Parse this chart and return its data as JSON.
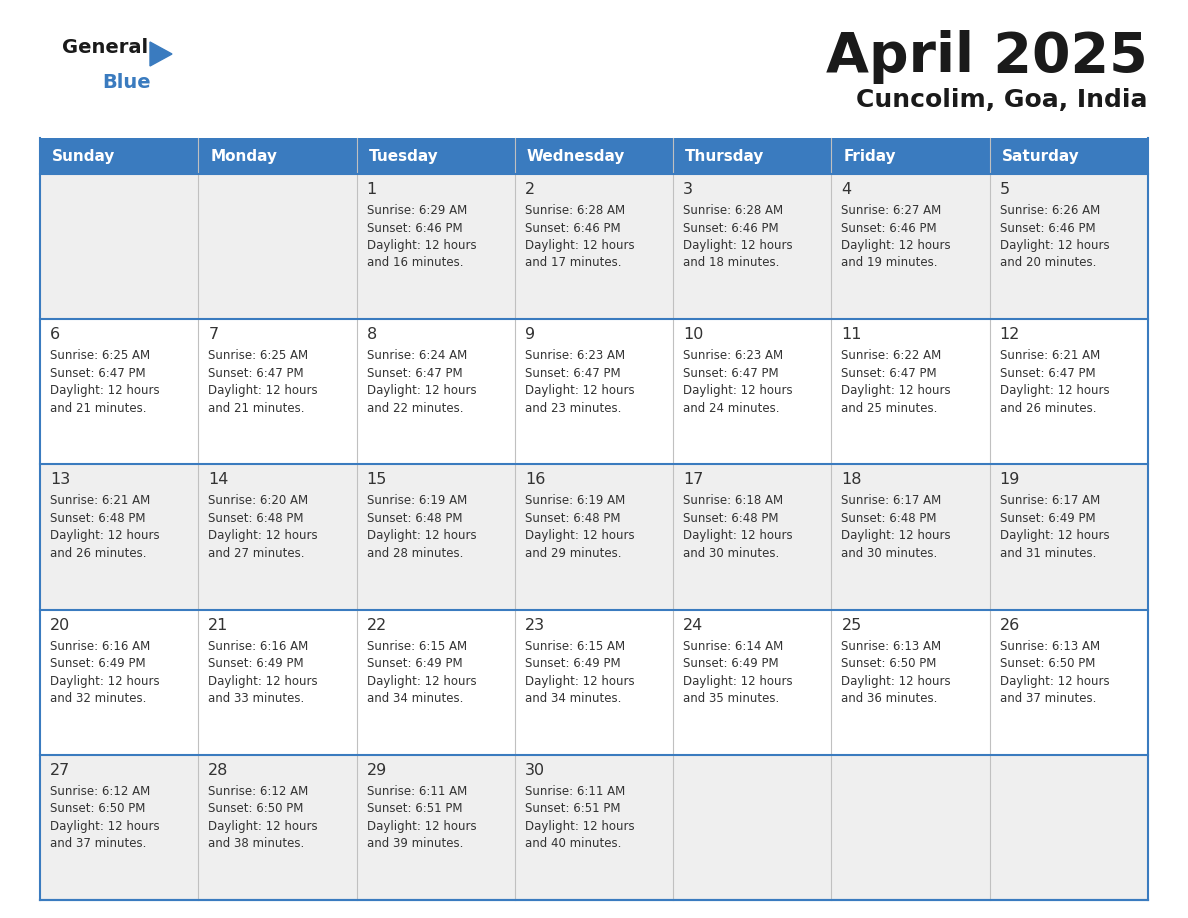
{
  "title": "April 2025",
  "subtitle": "Cuncolim, Goa, India",
  "header_color": "#3a7bbf",
  "header_text_color": "#ffffff",
  "row_odd_bg": "#efefef",
  "row_even_bg": "#ffffff",
  "border_color": "#3a7bbf",
  "text_color": "#333333",
  "days_of_week": [
    "Sunday",
    "Monday",
    "Tuesday",
    "Wednesday",
    "Thursday",
    "Friday",
    "Saturday"
  ],
  "weeks": [
    [
      {
        "day": "",
        "sunrise": "",
        "sunset": "",
        "daylight_hours": 0,
        "daylight_minutes": 0
      },
      {
        "day": "",
        "sunrise": "",
        "sunset": "",
        "daylight_hours": 0,
        "daylight_minutes": 0
      },
      {
        "day": "1",
        "sunrise": "6:29 AM",
        "sunset": "6:46 PM",
        "daylight_hours": 12,
        "daylight_minutes": 16
      },
      {
        "day": "2",
        "sunrise": "6:28 AM",
        "sunset": "6:46 PM",
        "daylight_hours": 12,
        "daylight_minutes": 17
      },
      {
        "day": "3",
        "sunrise": "6:28 AM",
        "sunset": "6:46 PM",
        "daylight_hours": 12,
        "daylight_minutes": 18
      },
      {
        "day": "4",
        "sunrise": "6:27 AM",
        "sunset": "6:46 PM",
        "daylight_hours": 12,
        "daylight_minutes": 19
      },
      {
        "day": "5",
        "sunrise": "6:26 AM",
        "sunset": "6:46 PM",
        "daylight_hours": 12,
        "daylight_minutes": 20
      }
    ],
    [
      {
        "day": "6",
        "sunrise": "6:25 AM",
        "sunset": "6:47 PM",
        "daylight_hours": 12,
        "daylight_minutes": 21
      },
      {
        "day": "7",
        "sunrise": "6:25 AM",
        "sunset": "6:47 PM",
        "daylight_hours": 12,
        "daylight_minutes": 21
      },
      {
        "day": "8",
        "sunrise": "6:24 AM",
        "sunset": "6:47 PM",
        "daylight_hours": 12,
        "daylight_minutes": 22
      },
      {
        "day": "9",
        "sunrise": "6:23 AM",
        "sunset": "6:47 PM",
        "daylight_hours": 12,
        "daylight_minutes": 23
      },
      {
        "day": "10",
        "sunrise": "6:23 AM",
        "sunset": "6:47 PM",
        "daylight_hours": 12,
        "daylight_minutes": 24
      },
      {
        "day": "11",
        "sunrise": "6:22 AM",
        "sunset": "6:47 PM",
        "daylight_hours": 12,
        "daylight_minutes": 25
      },
      {
        "day": "12",
        "sunrise": "6:21 AM",
        "sunset": "6:47 PM",
        "daylight_hours": 12,
        "daylight_minutes": 26
      }
    ],
    [
      {
        "day": "13",
        "sunrise": "6:21 AM",
        "sunset": "6:48 PM",
        "daylight_hours": 12,
        "daylight_minutes": 26
      },
      {
        "day": "14",
        "sunrise": "6:20 AM",
        "sunset": "6:48 PM",
        "daylight_hours": 12,
        "daylight_minutes": 27
      },
      {
        "day": "15",
        "sunrise": "6:19 AM",
        "sunset": "6:48 PM",
        "daylight_hours": 12,
        "daylight_minutes": 28
      },
      {
        "day": "16",
        "sunrise": "6:19 AM",
        "sunset": "6:48 PM",
        "daylight_hours": 12,
        "daylight_minutes": 29
      },
      {
        "day": "17",
        "sunrise": "6:18 AM",
        "sunset": "6:48 PM",
        "daylight_hours": 12,
        "daylight_minutes": 30
      },
      {
        "day": "18",
        "sunrise": "6:17 AM",
        "sunset": "6:48 PM",
        "daylight_hours": 12,
        "daylight_minutes": 30
      },
      {
        "day": "19",
        "sunrise": "6:17 AM",
        "sunset": "6:49 PM",
        "daylight_hours": 12,
        "daylight_minutes": 31
      }
    ],
    [
      {
        "day": "20",
        "sunrise": "6:16 AM",
        "sunset": "6:49 PM",
        "daylight_hours": 12,
        "daylight_minutes": 32
      },
      {
        "day": "21",
        "sunrise": "6:16 AM",
        "sunset": "6:49 PM",
        "daylight_hours": 12,
        "daylight_minutes": 33
      },
      {
        "day": "22",
        "sunrise": "6:15 AM",
        "sunset": "6:49 PM",
        "daylight_hours": 12,
        "daylight_minutes": 34
      },
      {
        "day": "23",
        "sunrise": "6:15 AM",
        "sunset": "6:49 PM",
        "daylight_hours": 12,
        "daylight_minutes": 34
      },
      {
        "day": "24",
        "sunrise": "6:14 AM",
        "sunset": "6:49 PM",
        "daylight_hours": 12,
        "daylight_minutes": 35
      },
      {
        "day": "25",
        "sunrise": "6:13 AM",
        "sunset": "6:50 PM",
        "daylight_hours": 12,
        "daylight_minutes": 36
      },
      {
        "day": "26",
        "sunrise": "6:13 AM",
        "sunset": "6:50 PM",
        "daylight_hours": 12,
        "daylight_minutes": 37
      }
    ],
    [
      {
        "day": "27",
        "sunrise": "6:12 AM",
        "sunset": "6:50 PM",
        "daylight_hours": 12,
        "daylight_minutes": 37
      },
      {
        "day": "28",
        "sunrise": "6:12 AM",
        "sunset": "6:50 PM",
        "daylight_hours": 12,
        "daylight_minutes": 38
      },
      {
        "day": "29",
        "sunrise": "6:11 AM",
        "sunset": "6:51 PM",
        "daylight_hours": 12,
        "daylight_minutes": 39
      },
      {
        "day": "30",
        "sunrise": "6:11 AM",
        "sunset": "6:51 PM",
        "daylight_hours": 12,
        "daylight_minutes": 40
      },
      {
        "day": "",
        "sunrise": "",
        "sunset": "",
        "daylight_hours": 0,
        "daylight_minutes": 0
      },
      {
        "day": "",
        "sunrise": "",
        "sunset": "",
        "daylight_hours": 0,
        "daylight_minutes": 0
      },
      {
        "day": "",
        "sunrise": "",
        "sunset": "",
        "daylight_hours": 0,
        "daylight_minutes": 0
      }
    ]
  ]
}
